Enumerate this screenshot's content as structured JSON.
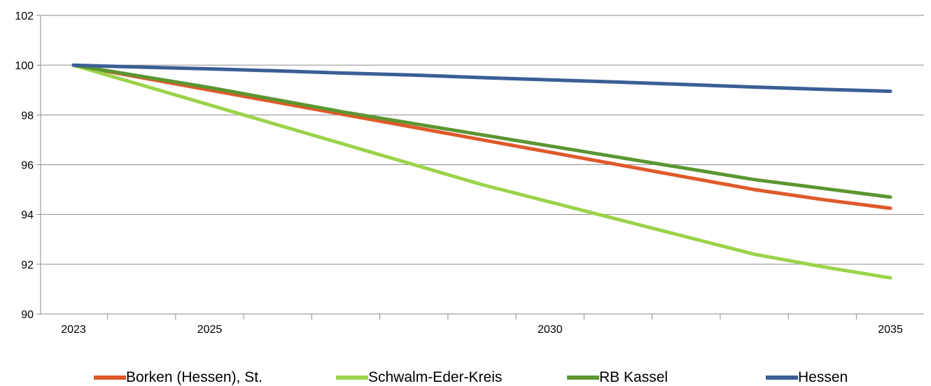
{
  "chart_data": {
    "type": "line",
    "title": "",
    "xlabel": "",
    "ylabel": "",
    "x": [
      2023,
      2024,
      2025,
      2026,
      2027,
      2028,
      2029,
      2030,
      2031,
      2032,
      2033,
      2034,
      2035
    ],
    "x_tick_labels": [
      "2023",
      "2025",
      "2030",
      "2035"
    ],
    "y_ticks": [
      "90",
      "92",
      "94",
      "96",
      "98",
      "100",
      "102"
    ],
    "ylim": [
      90,
      102
    ],
    "xlim": [
      2023,
      2035
    ],
    "grid": "horizontal",
    "legend_position": "bottom",
    "series": [
      {
        "name": "Borken (Hessen), St.",
        "color": "#e0592a",
        "values": [
          100.0,
          99.5,
          99.0,
          98.5,
          98.0,
          97.5,
          97.0,
          96.5,
          96.0,
          95.5,
          95.0,
          94.6,
          94.25
        ]
      },
      {
        "name": "Schwalm-Eder-Kreis",
        "color": "#9bd34a",
        "values": [
          100.0,
          99.2,
          98.4,
          97.6,
          96.8,
          96.0,
          95.2,
          94.5,
          93.8,
          93.1,
          92.4,
          91.9,
          91.45
        ]
      },
      {
        "name": "RB Kassel",
        "color": "#5b9632",
        "values": [
          100.0,
          99.55,
          99.1,
          98.6,
          98.1,
          97.65,
          97.2,
          96.75,
          96.3,
          95.85,
          95.4,
          95.05,
          94.7
        ]
      },
      {
        "name": "Hessen",
        "color": "#3a5f95",
        "values": [
          100.0,
          99.92,
          99.85,
          99.77,
          99.68,
          99.6,
          99.5,
          99.41,
          99.32,
          99.22,
          99.12,
          99.03,
          98.95
        ]
      }
    ]
  }
}
